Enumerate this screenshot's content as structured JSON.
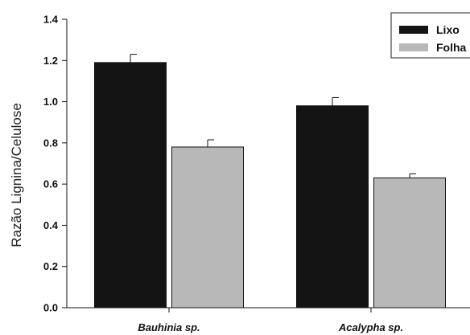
{
  "chart_data": {
    "type": "bar",
    "categories": [
      "Bauhinia sp.",
      "Acalypha sp."
    ],
    "series": [
      {
        "name": "Lixo",
        "values": [
          1.19,
          0.98
        ],
        "errors": [
          0.04,
          0.04
        ],
        "color": "#141414"
      },
      {
        "name": "Folha",
        "values": [
          0.78,
          0.63
        ],
        "errors": [
          0.035,
          0.02
        ],
        "color": "#b8b8b8"
      }
    ],
    "title": "",
    "xlabel": "",
    "ylabel": "Razão Lignina/Celulose",
    "ylim": [
      0,
      1.4
    ],
    "yticks": [
      "0.0",
      "0.2",
      "0.4",
      "0.6",
      "0.8",
      "1.0",
      "1.2",
      "1.4"
    ],
    "grid": false,
    "legend_position": "top-right"
  }
}
